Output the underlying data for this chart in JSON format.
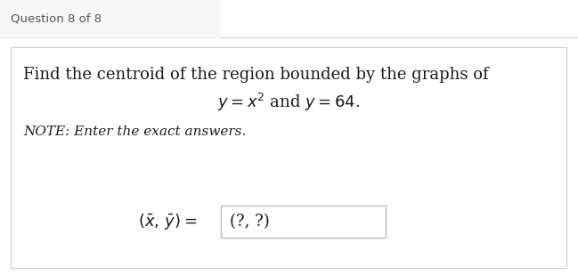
{
  "title": "Question 8 of 8",
  "title_fontsize": 9.5,
  "title_color": "#555555",
  "bg_color": "#ffffff",
  "header_bg": "#f7f7f7",
  "line1": "Find the centroid of the region bounded by the graphs of",
  "line2": "$y = x^2$ and $y = 64.$",
  "line3": "NOTE: Enter the exact answers.",
  "line4_box": "(?, ?)",
  "main_fontsize": 13.0,
  "note_fontsize": 11.0,
  "answer_fontsize": 13.0,
  "separator_color": "#cccccc",
  "box_border_color": "#cccccc",
  "ans_box_border": "#bbbbbb"
}
